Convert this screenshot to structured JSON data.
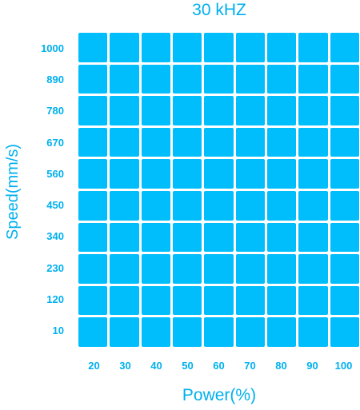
{
  "title": "30 kHZ",
  "x_axis": {
    "label": "Power(%)",
    "ticks": [
      "20",
      "30",
      "40",
      "50",
      "60",
      "70",
      "80",
      "90",
      "100"
    ]
  },
  "y_axis": {
    "label": "Speed(mm/s)",
    "ticks": [
      "1000",
      "890",
      "780",
      "670",
      "560",
      "450",
      "340",
      "230",
      "120",
      "10"
    ]
  },
  "cell_color": "#00befc",
  "text_color": "#00b0ee"
}
